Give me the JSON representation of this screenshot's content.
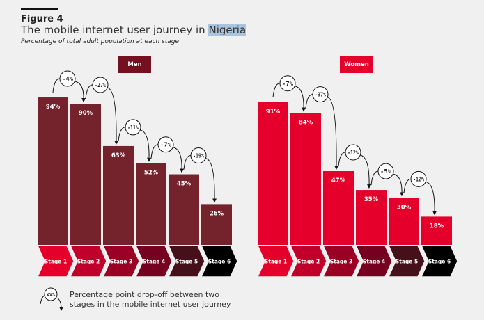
{
  "header": {
    "figure_label": "Figure 4",
    "title_prefix": "The mobile internet user journey in",
    "title_country": "Nigeria",
    "subtitle": "Percentage of total adult population at each stage"
  },
  "chart_data": [
    {
      "type": "bar",
      "title": "Men",
      "categories": [
        "Stage 1",
        "Stage 2",
        "Stage 3",
        "Stage 4",
        "Stage 5",
        "Stage 6"
      ],
      "values": [
        94,
        90,
        63,
        52,
        45,
        26
      ],
      "value_labels": [
        "94%",
        "90%",
        "63%",
        "52%",
        "45%",
        "26%"
      ],
      "dropoffs": [
        "-4%",
        "-27%",
        "-11%",
        "-7%",
        "-19%"
      ],
      "ylim": [
        0,
        100
      ],
      "bar_color": "#74222c",
      "title_color": "#74101f"
    },
    {
      "type": "bar",
      "title": "Women",
      "categories": [
        "Stage 1",
        "Stage 2",
        "Stage 3",
        "Stage 4",
        "Stage 5",
        "Stage 6"
      ],
      "values": [
        91,
        84,
        47,
        35,
        30,
        18
      ],
      "value_labels": [
        "91%",
        "84%",
        "47%",
        "35%",
        "30%",
        "18%"
      ],
      "dropoffs": [
        "-7%",
        "-37%",
        "-12%",
        "-5%",
        "-12%"
      ],
      "ylim": [
        0,
        100
      ],
      "bar_color": "#e4002b",
      "title_color": "#e4002b"
    }
  ],
  "stage_colors": [
    "#e4002b",
    "#c0002a",
    "#9a0024",
    "#750020",
    "#45101a",
    "#000000"
  ],
  "legend": {
    "symbol": "XX%",
    "text_line1": "Percentage point drop-off between two",
    "text_line2": "stages in the mobile internet user journey"
  }
}
